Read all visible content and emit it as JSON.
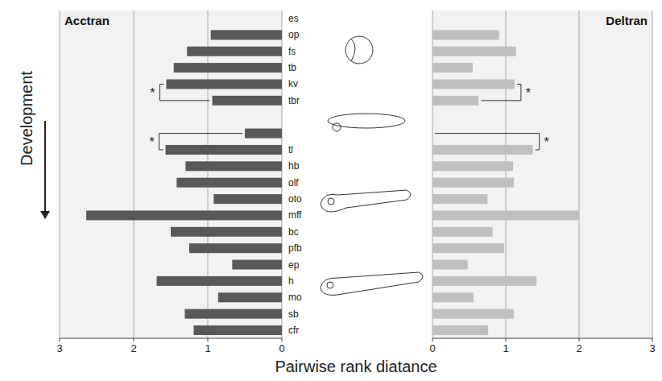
{
  "chart_data": {
    "type": "bar",
    "orientation": "horizontal",
    "categories": [
      "es",
      "op",
      "fs",
      "tb",
      "kv",
      "tbr",
      null,
      null,
      "tl",
      "hb",
      "olf",
      "oto",
      "mff",
      "bc",
      "pfb",
      "ep",
      "h",
      "mo",
      "sb",
      "cfr"
    ],
    "series": [
      {
        "name": "Acctran",
        "color": "#595959",
        "values": [
          null,
          0.96,
          1.28,
          1.46,
          1.56,
          0.94,
          null,
          0.5,
          1.57,
          1.3,
          1.42,
          0.92,
          2.64,
          1.5,
          1.25,
          0.67,
          1.69,
          0.86,
          1.31,
          1.19
        ],
        "significance": [
          {
            "rows": [
              4,
              5
            ],
            "label": "*"
          },
          {
            "rows": [
              7,
              8
            ],
            "label": "*"
          }
        ]
      },
      {
        "name": "Deltran",
        "color": "#bfbfbf",
        "values": [
          null,
          0.91,
          1.14,
          0.55,
          1.12,
          0.63,
          null,
          null,
          1.37,
          1.1,
          1.11,
          0.75,
          2.0,
          0.82,
          0.98,
          0.48,
          1.42,
          0.56,
          1.11,
          0.76
        ],
        "significance": [
          {
            "rows": [
              4,
              5
            ],
            "label": "*"
          },
          {
            "rows": [
              7,
              8
            ],
            "label": "*"
          }
        ]
      }
    ],
    "xlim": [
      0,
      3
    ],
    "xticks": [
      0,
      1,
      2,
      3
    ],
    "grid": true,
    "x_label": "Pairwise rank diatance",
    "y_label": "Development"
  }
}
